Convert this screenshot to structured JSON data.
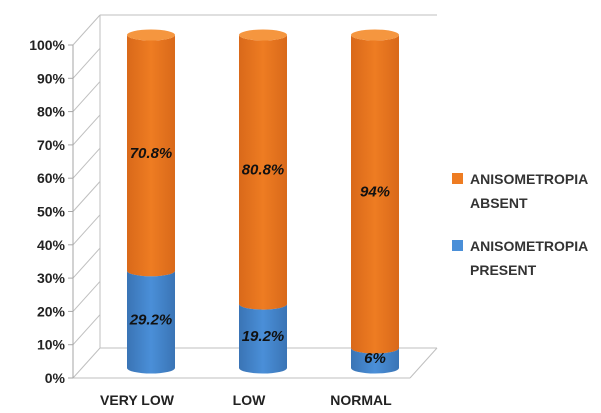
{
  "chart_data": {
    "type": "bar",
    "stacked": true,
    "three_d": true,
    "categories": [
      "VERY LOW",
      "LOW",
      "NORMAL"
    ],
    "series": [
      {
        "name": "ANISOMETROPIA PRESENT",
        "values": [
          29.2,
          19.2,
          6
        ],
        "labels": [
          "29.2%",
          "19.2%",
          "6%"
        ],
        "color": "#4a8fd8"
      },
      {
        "name": "ANISOMETROPIA ABSENT",
        "values": [
          70.8,
          80.8,
          94
        ],
        "labels": [
          "70.8%",
          "80.8%",
          "94%"
        ],
        "color": "#ee7c22"
      }
    ],
    "y_ticks": [
      "0%",
      "10%",
      "20%",
      "30%",
      "40%",
      "50%",
      "60%",
      "70%",
      "80%",
      "90%",
      "100%"
    ],
    "ylim": [
      0,
      100
    ],
    "grid": false,
    "legend_position": "right"
  }
}
